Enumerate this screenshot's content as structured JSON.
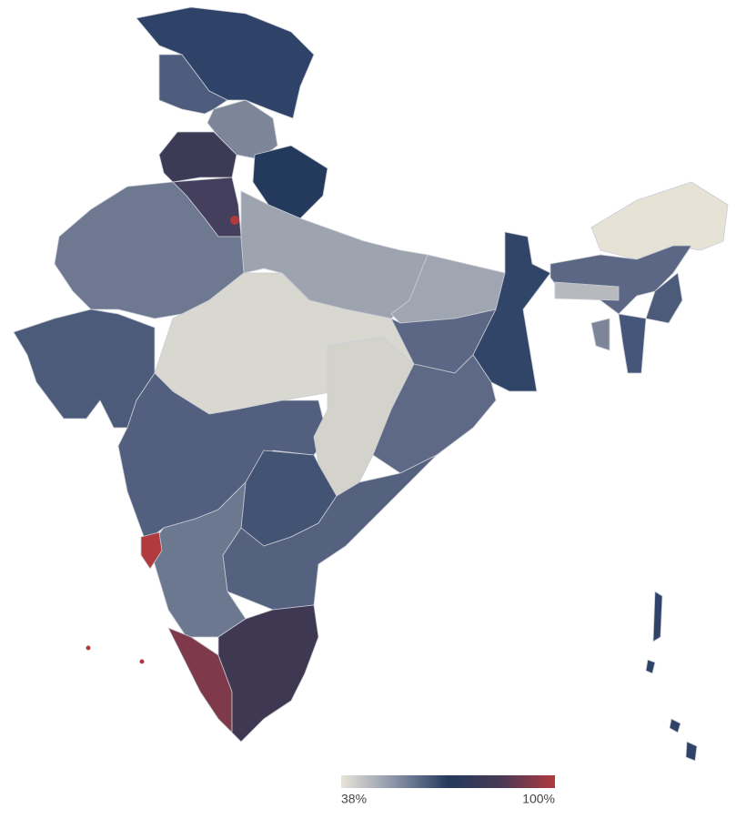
{
  "map": {
    "legend": {
      "range": [
        38,
        100
      ],
      "colors": [
        "#e8e4d8",
        "#8a93a8",
        "#233a5c",
        "#4a3a55",
        "#b03a3e"
      ],
      "ticks": [
        {
          "value": 38,
          "label": "38%"
        },
        {
          "value": 100,
          "label": "100%"
        }
      ]
    }
  }
}
